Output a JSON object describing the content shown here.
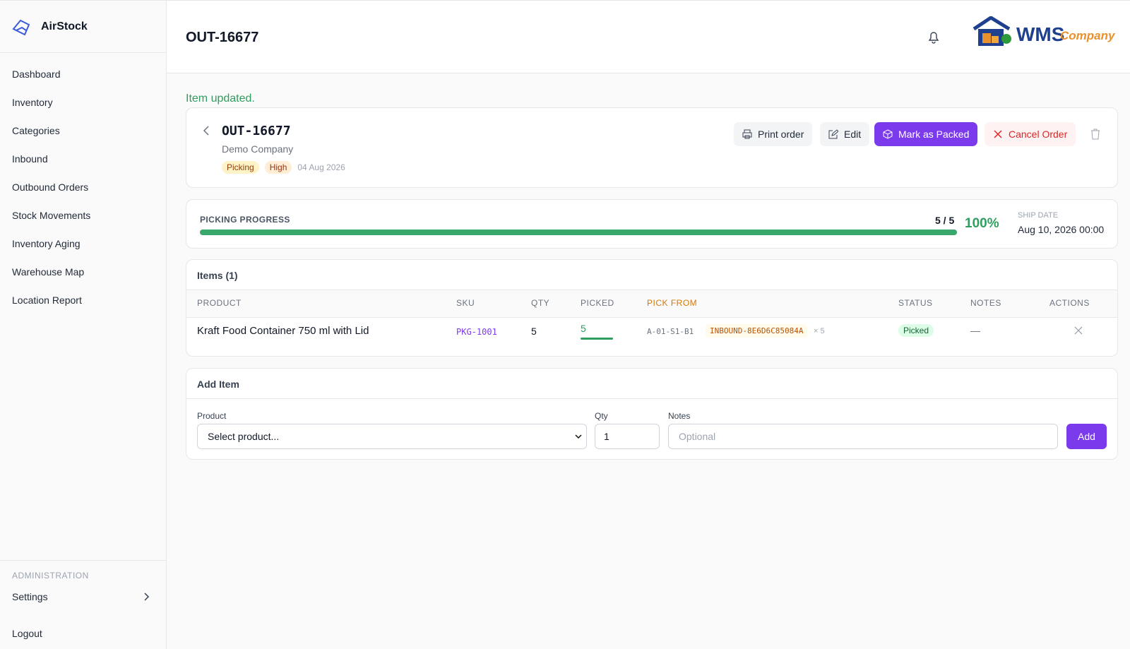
{
  "sidebar": {
    "brand": "AirStock",
    "nav": [
      "Dashboard",
      "Inventory",
      "Categories",
      "Inbound",
      "Outbound Orders",
      "Stock Movements",
      "Inventory Aging",
      "Warehouse Map",
      "Location Report"
    ],
    "admin_heading": "ADMINISTRATION",
    "settings": "Settings",
    "logout": "Logout"
  },
  "header": {
    "title": "OUT-16677",
    "logo_main": "WMS",
    "logo_sub": "Company"
  },
  "flash": "Item updated.",
  "order": {
    "id": "OUT-16677",
    "company": "Demo Company",
    "status": "Picking",
    "priority": "High",
    "date": "04 Aug 2026",
    "buttons": {
      "print": "Print order",
      "edit": "Edit",
      "pack": "Mark as Packed",
      "cancel": "Cancel Order"
    }
  },
  "progress": {
    "label": "PICKING PROGRESS",
    "count": "5 / 5",
    "percent": {
      "value": 100,
      "label": "100%"
    },
    "ship_date_label": "SHIP DATE",
    "ship_date": "Aug 10, 2026 00:00"
  },
  "items": {
    "title": "Items (1)",
    "headers": [
      "PRODUCT",
      "SKU",
      "QTY",
      "PICKED",
      "PICK FROM",
      "STATUS",
      "NOTES",
      "ACTIONS"
    ],
    "rows": [
      {
        "product": "Kraft Food Container 750 ml with Lid",
        "sku": "PKG-1001",
        "qty": 5,
        "picked": 5,
        "location": "A-01-S1-B1",
        "batch": "INBOUND-8E6D6C85084A",
        "batch_qty": "× 5",
        "status": "Picked",
        "notes": "—"
      }
    ]
  },
  "add_item": {
    "title": "Add Item",
    "product_label": "Product",
    "product_placeholder": "Select product...",
    "qty_label": "Qty",
    "qty_value": 1,
    "notes_label": "Notes",
    "notes_placeholder": "Optional",
    "button": "Add"
  }
}
